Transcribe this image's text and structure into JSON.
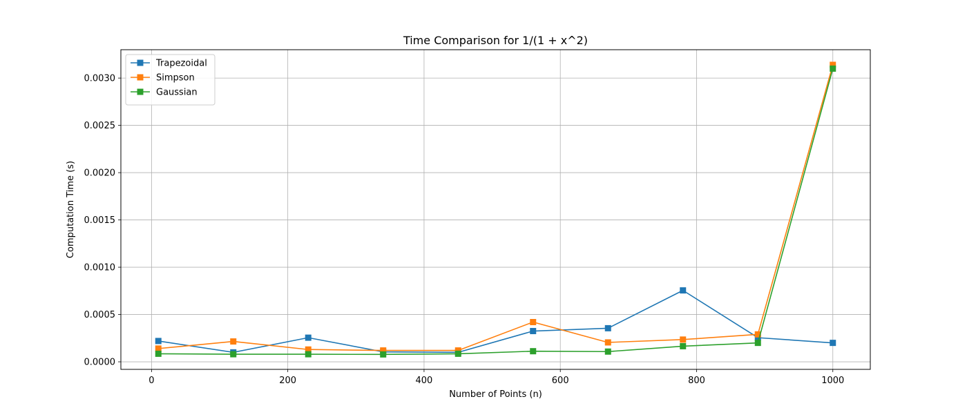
{
  "chart_data": {
    "type": "line",
    "title": "Time Comparison for 1/(1 + x^2)",
    "xlabel": "Number of Points (n)",
    "ylabel": "Computation Time (s)",
    "x": [
      10,
      120,
      230,
      340,
      450,
      560,
      670,
      780,
      890,
      1000
    ],
    "xlim": [
      -45,
      1055
    ],
    "ylim": [
      -8e-05,
      0.0033
    ],
    "xticks": [
      0,
      200,
      400,
      600,
      800,
      1000
    ],
    "xtick_labels": [
      "0",
      "200",
      "400",
      "600",
      "800",
      "1000"
    ],
    "yticks": [
      0.0,
      0.0005,
      0.001,
      0.0015,
      0.002,
      0.0025,
      0.003
    ],
    "ytick_labels": [
      "0.0000",
      "0.0005",
      "0.0010",
      "0.0015",
      "0.0020",
      "0.0025",
      "0.0030"
    ],
    "grid": true,
    "legend_position": "upper left",
    "marker": "square",
    "series": [
      {
        "name": "Trapezoidal",
        "color": "#1f77b4",
        "values": [
          0.00022,
          0.0001,
          0.000255,
          0.000105,
          0.0001,
          0.000325,
          0.000355,
          0.000755,
          0.000255,
          0.0002
        ]
      },
      {
        "name": "Simpson",
        "color": "#ff7f0e",
        "values": [
          0.00014,
          0.000215,
          0.00013,
          0.00012,
          0.00012,
          0.00042,
          0.000205,
          0.000235,
          0.00029,
          0.00314
        ]
      },
      {
        "name": "Gaussian",
        "color": "#2ca02c",
        "values": [
          8.5e-05,
          8e-05,
          8e-05,
          7.8e-05,
          8.5e-05,
          0.000112,
          0.000108,
          0.000165,
          0.0002,
          0.0031
        ]
      }
    ]
  }
}
